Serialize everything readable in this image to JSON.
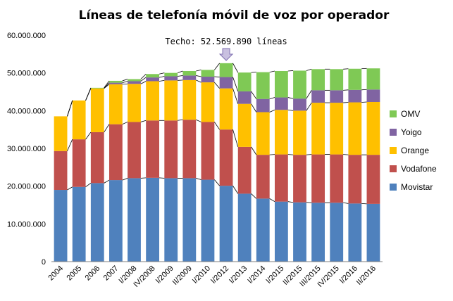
{
  "chart_data": {
    "type": "bar",
    "stacked": true,
    "title": "Líneas de telefonía móvil de voz por operador",
    "xlabel": "",
    "ylabel": "",
    "ylim": [
      0,
      60000000
    ],
    "yticks": [
      0,
      10000000,
      20000000,
      30000000,
      40000000,
      50000000,
      60000000
    ],
    "ytick_labels": [
      "0",
      "10.000.000",
      "20.000.000",
      "30.000.000",
      "40.000.000",
      "50.000.000",
      "60.000.000"
    ],
    "categories": [
      "2004",
      "2005",
      "2006",
      "2007",
      "I/2008",
      "IV/2008",
      "I/2009",
      "II/2009",
      "I/2010",
      "I/2012",
      "I/2013",
      "I/2014",
      "I/2015",
      "II/2015",
      "III/2015",
      "IV/2015",
      "I/2016",
      "II/2016"
    ],
    "series": [
      {
        "name": "Movistar",
        "color": "#4f81bd",
        "values": [
          19000000,
          19800000,
          20800000,
          21600000,
          22100000,
          22200000,
          22100000,
          22100000,
          21700000,
          20100000,
          18000000,
          16700000,
          15900000,
          15700000,
          15600000,
          15600000,
          15400000,
          15300000
        ]
      },
      {
        "name": "Vodafone",
        "color": "#c0504d",
        "values": [
          10300000,
          12600000,
          13500000,
          14800000,
          14900000,
          15200000,
          15300000,
          15500000,
          15300000,
          14900000,
          12400000,
          11600000,
          12500000,
          12600000,
          12800000,
          12800000,
          12900000,
          13000000
        ]
      },
      {
        "name": "Orange",
        "color": "#ffc000",
        "values": [
          9200000,
          10300000,
          11600000,
          10600000,
          10100000,
          10400000,
          10600000,
          10500000,
          10500000,
          10900000,
          11400000,
          11300000,
          11800000,
          11700000,
          13700000,
          13700000,
          13900000,
          14000000
        ]
      },
      {
        "name": "Yoigo",
        "color": "#8064a2",
        "values": [
          0,
          0,
          0,
          400000,
          700000,
          1000000,
          1100000,
          1200000,
          1500000,
          3000000,
          3300000,
          3500000,
          3300000,
          3200000,
          3300000,
          3300000,
          3300000,
          3300000
        ]
      },
      {
        "name": "OMV",
        "color": "#7fc955",
        "values": [
          0,
          0,
          150000,
          500000,
          550000,
          900000,
          900000,
          1200000,
          1800000,
          3670000,
          5000000,
          7100000,
          7000000,
          7400000,
          5600000,
          5600000,
          5600000,
          5600000
        ]
      }
    ],
    "legend_order": [
      "OMV",
      "Yoigo",
      "Orange",
      "Vodafone",
      "Movistar"
    ],
    "legend_position": "right",
    "annotation": {
      "text": "Techo: 52.569.890 líneas",
      "category": "I/2012",
      "value": 52569890
    }
  }
}
